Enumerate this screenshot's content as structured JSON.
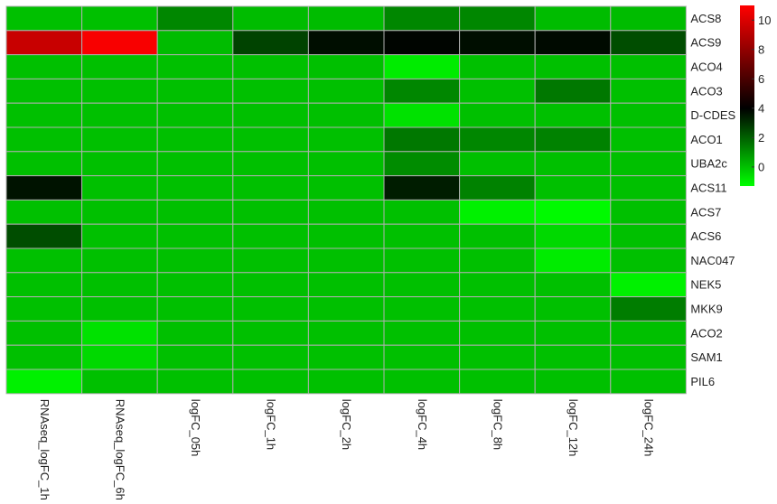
{
  "chart_data": {
    "type": "heatmap",
    "rows": [
      "ACS8",
      "ACS9",
      "ACO4",
      "ACO3",
      "D-CDES",
      "ACO1",
      "UBA2c",
      "ACS11",
      "ACS7",
      "ACS6",
      "NAC047",
      "NEK5",
      "MKK9",
      "ACO2",
      "SAM1",
      "PIL6"
    ],
    "columns": [
      "RNAseq_logFC_1h",
      "RNAseq_logFC_6h",
      "logFC_05h",
      "logFC_1h",
      "logFC_2h",
      "logFC_4h",
      "logFC_8h",
      "logFC_12h",
      "logFC_24h"
    ],
    "values": [
      [
        0.0,
        0.0,
        1.2,
        0.1,
        0.1,
        1.2,
        1.2,
        0.1,
        0.1
      ],
      [
        9.5,
        10.8,
        0.1,
        2.6,
        3.7,
        3.9,
        3.7,
        3.8,
        2.4
      ],
      [
        0.0,
        0.0,
        0.0,
        0.0,
        0.0,
        -0.9,
        0.0,
        0.0,
        0.0
      ],
      [
        0.0,
        0.0,
        0.0,
        0.0,
        0.0,
        1.2,
        0.0,
        1.5,
        0.0
      ],
      [
        0.0,
        0.0,
        0.0,
        0.0,
        0.0,
        -0.7,
        0.0,
        0.0,
        0.0
      ],
      [
        0.0,
        0.0,
        0.0,
        0.0,
        0.0,
        1.5,
        1.2,
        1.3,
        0.0
      ],
      [
        0.0,
        0.0,
        0.0,
        0.0,
        0.0,
        1.1,
        0.0,
        0.0,
        0.0
      ],
      [
        3.6,
        0.0,
        0.0,
        0.0,
        0.0,
        3.4,
        1.3,
        0.0,
        0.0
      ],
      [
        0.0,
        0.0,
        0.0,
        0.0,
        0.0,
        0.0,
        -1.0,
        -1.2,
        0.0
      ],
      [
        2.4,
        0.0,
        0.0,
        0.0,
        0.0,
        0.0,
        0.0,
        -0.5,
        0.0
      ],
      [
        0.0,
        0.0,
        0.0,
        0.0,
        0.0,
        0.0,
        0.0,
        -0.9,
        0.0
      ],
      [
        0.0,
        0.0,
        0.0,
        0.0,
        0.0,
        0.0,
        0.0,
        0.0,
        -1.0
      ],
      [
        0.0,
        0.0,
        0.0,
        0.0,
        0.0,
        0.0,
        0.0,
        0.0,
        1.4
      ],
      [
        0.0,
        -0.7,
        0.0,
        0.0,
        0.0,
        0.0,
        0.0,
        0.0,
        0.0
      ],
      [
        0.0,
        -0.5,
        0.0,
        0.0,
        0.0,
        0.0,
        0.0,
        0.0,
        0.0
      ],
      [
        -1.0,
        0.0,
        0.0,
        0.0,
        0.0,
        0.0,
        0.0,
        0.0,
        0.0
      ]
    ],
    "scale": {
      "min": -1.3,
      "max": 11.0,
      "ticks": [
        0,
        2,
        4,
        6,
        8,
        10
      ],
      "colors": [
        "#00ff00",
        "#000000",
        "#ff0000"
      ],
      "mid": 4
    },
    "legend_position": "right",
    "cell_border_color": "#b0b0b0"
  }
}
